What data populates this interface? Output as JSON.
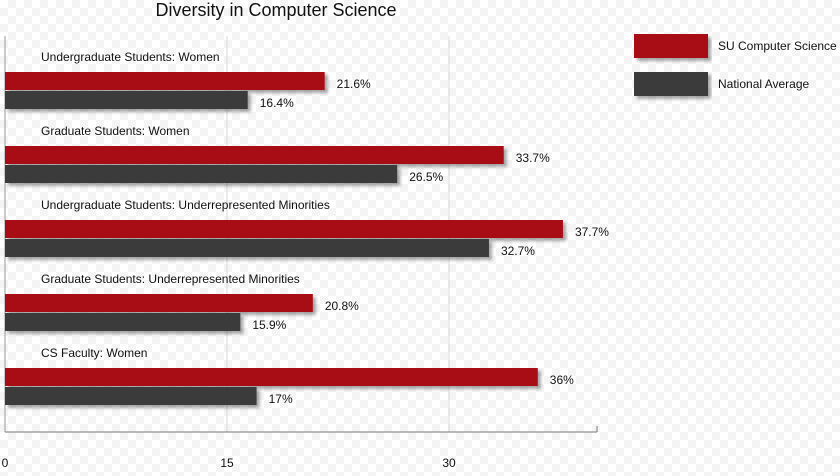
{
  "chart_data": {
    "type": "bar",
    "orientation": "horizontal",
    "title": "Diversity in Computer Science",
    "categories": [
      "Undergraduate Students: Women",
      "Graduate Students: Women",
      "Undergraduate Students: Underrepresented Minorities",
      "Graduate Students: Underrepresented Minorities",
      "CS Faculty: Women"
    ],
    "series": [
      {
        "name": "SU Computer Science",
        "color": "#a80e14",
        "values": [
          21.6,
          33.7,
          37.7,
          20.8,
          36
        ],
        "value_labels": [
          "21.6%",
          "33.7%",
          "37.7%",
          "20.8%",
          "36%"
        ]
      },
      {
        "name": "National Average",
        "color": "#3b3b3b",
        "values": [
          16.4,
          26.5,
          32.7,
          15.9,
          17
        ],
        "value_labels": [
          "16.4%",
          "26.5%",
          "32.7%",
          "15.9%",
          "17%"
        ]
      }
    ],
    "xlim": [
      0,
      40
    ],
    "xticks": [
      0,
      15,
      30
    ],
    "grid": true
  }
}
